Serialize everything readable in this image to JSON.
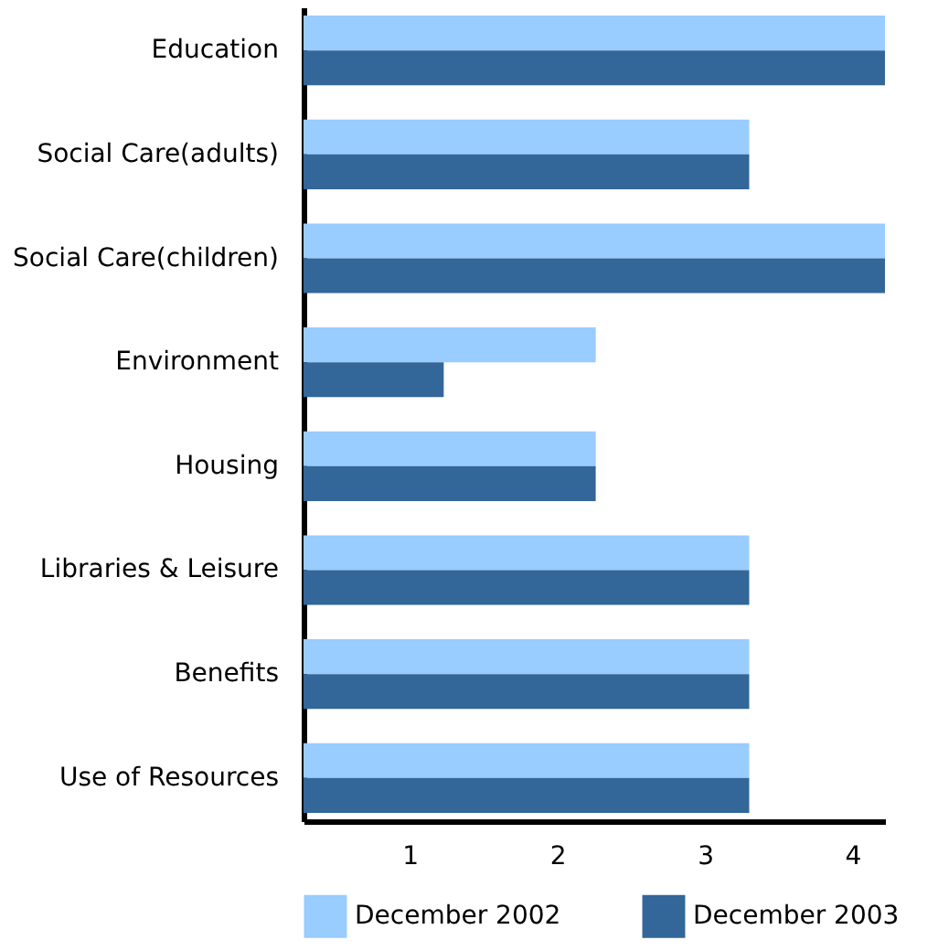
{
  "chart_data": {
    "type": "bar",
    "orientation": "horizontal",
    "categories": [
      "Education",
      "Social Care(adults)",
      "Social Care(children)",
      "Environment",
      "Housing",
      "Libraries & Leisure",
      "Benefits",
      "Use of Resources"
    ],
    "series": [
      {
        "name": "December 2002",
        "color": "#99ccff",
        "values": [
          4.22,
          3.3,
          4.22,
          2.26,
          2.26,
          3.3,
          3.3,
          3.3
        ]
      },
      {
        "name": "December  2003",
        "color": "#336699",
        "values": [
          4.22,
          3.3,
          4.22,
          1.23,
          2.26,
          3.3,
          3.3,
          3.3
        ]
      }
    ],
    "xlim": [
      0.28,
      4.22
    ],
    "xticks": [
      1,
      2,
      3,
      4
    ],
    "grid": false,
    "legend": "bottom"
  }
}
